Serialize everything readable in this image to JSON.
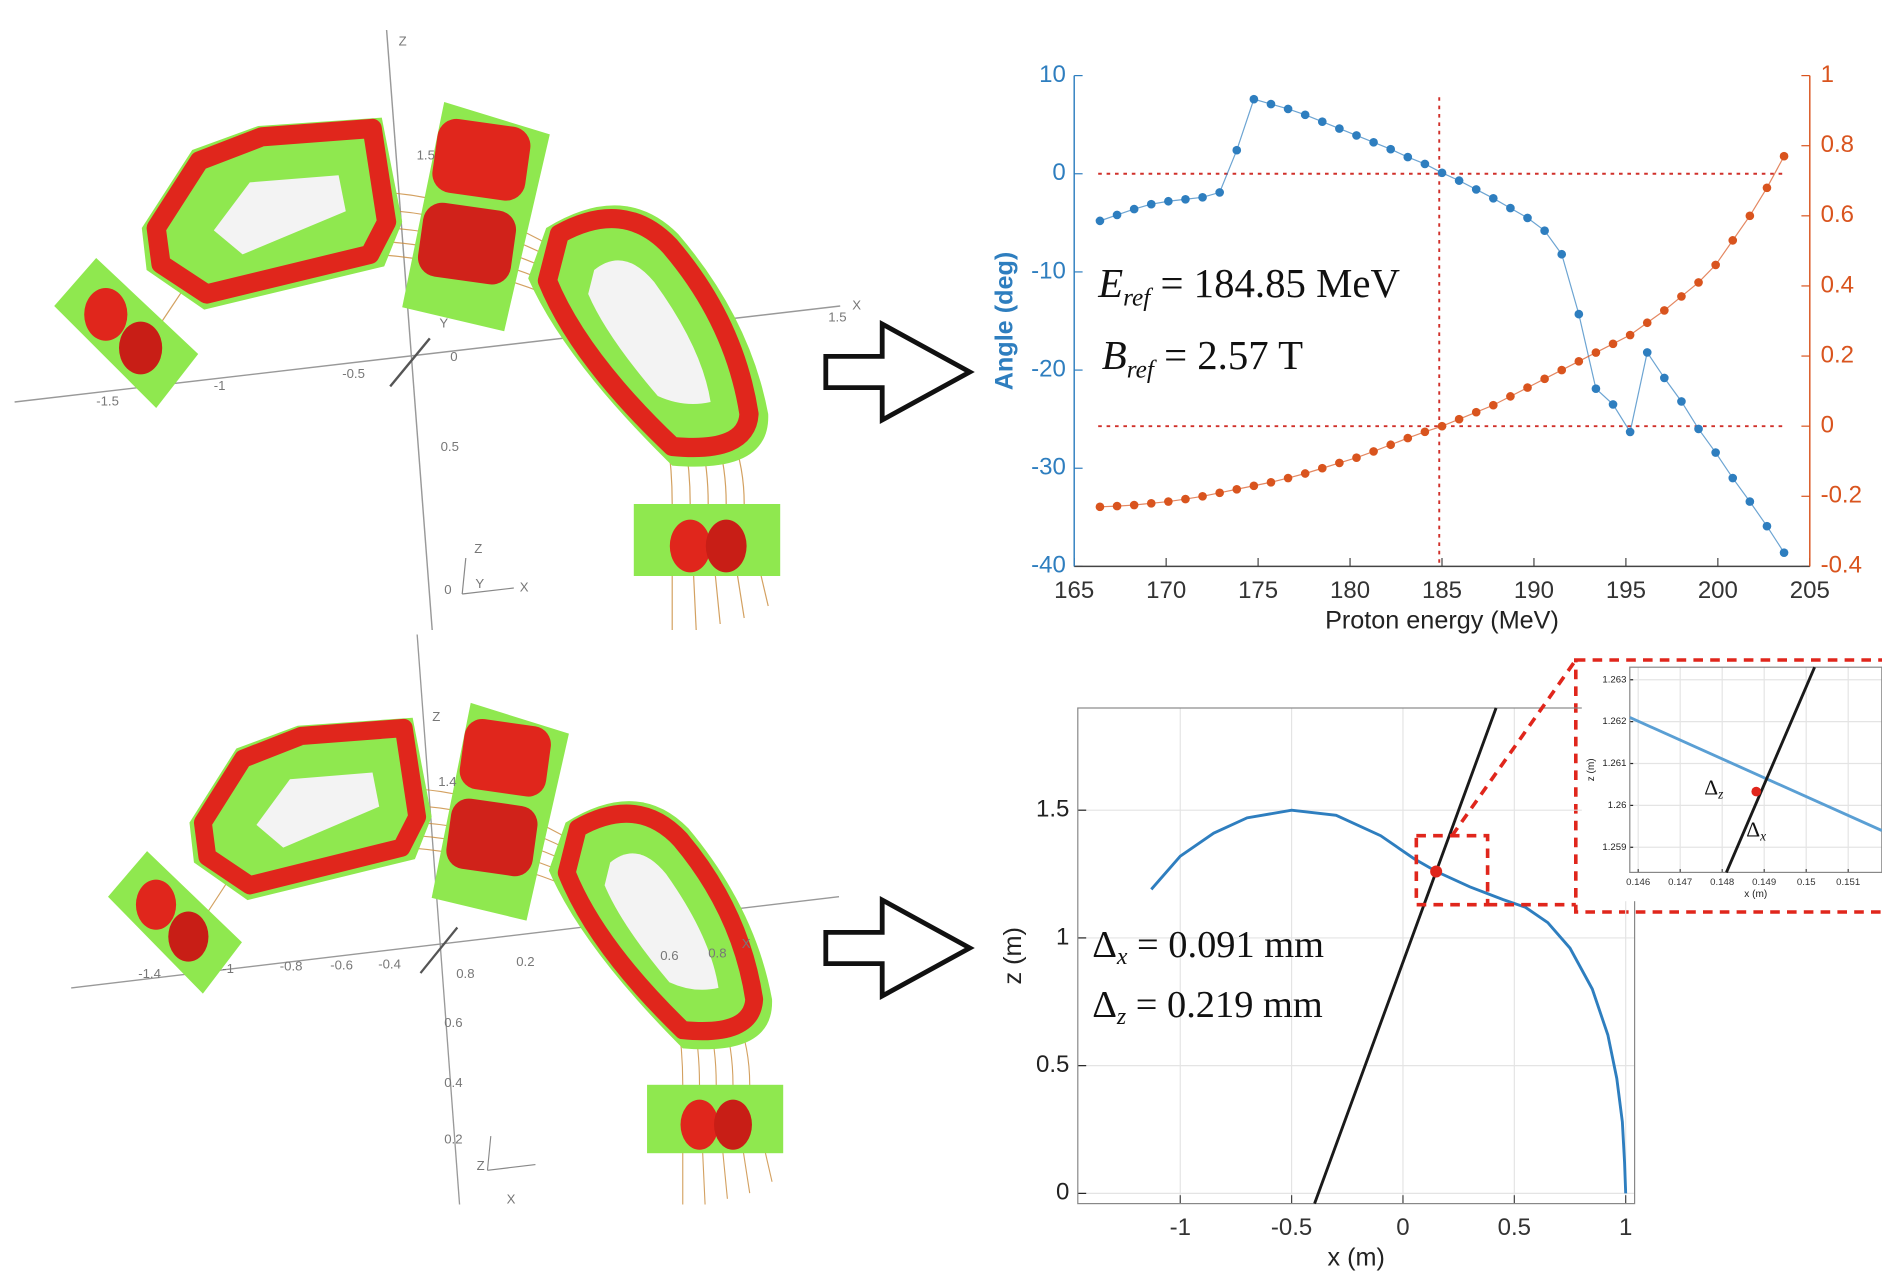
{
  "renders": {
    "top": {
      "labels": [
        "Z",
        "1.5",
        "X",
        "1.5",
        "-1.5",
        "-1",
        "-0.5",
        "0",
        "Y",
        "0.5",
        "Z",
        "Y",
        "X",
        "0"
      ]
    },
    "bottom": {
      "labels": [
        "Z",
        "1.4",
        "X",
        "-1.4",
        "-1",
        "-0.8",
        "-0.6",
        "-0.4",
        "0.8",
        "0.2",
        "0.6",
        "0.8",
        "0.6",
        "0.4",
        "0.2",
        "Z",
        "X"
      ]
    }
  },
  "chart_data": [
    {
      "type": "line",
      "markers": true,
      "colored_axes": true,
      "xlabel": "Proton energy (MeV)",
      "ylabel": "Angle (deg)",
      "x": [
        166.4,
        167.33,
        168.26,
        169.19,
        170.12,
        171.05,
        171.98,
        172.91,
        173.84,
        174.77,
        175.7,
        176.63,
        177.56,
        178.49,
        179.42,
        180.35,
        181.28,
        182.21,
        183.14,
        184.07,
        185,
        185.93,
        186.86,
        187.79,
        188.72,
        189.65,
        190.58,
        191.51,
        192.44,
        193.37,
        194.3,
        195.23,
        196.16,
        197.09,
        198.02,
        198.95,
        199.88,
        200.81,
        201.74,
        202.67,
        203.6
      ],
      "series": [
        {
          "color": "#2e7ebf",
          "values": [
            -4.8,
            -4.2,
            -3.6,
            -3.1,
            -2.8,
            -2.6,
            -2.4,
            -1.9,
            2.4,
            7.6,
            7.1,
            6.6,
            6.0,
            5.3,
            4.6,
            3.9,
            3.2,
            2.5,
            1.7,
            1.0,
            0.1,
            -0.7,
            -1.6,
            -2.5,
            -3.5,
            -4.5,
            -5.8,
            -8.2,
            -14.3,
            -21.9,
            -23.5,
            -26.3,
            -18.2,
            -20.8,
            -23.2,
            -26.0,
            -28.4,
            -31.0,
            -33.4,
            -35.9,
            -38.6
          ]
        },
        {
          "color": "#d9541e",
          "axis": "y2",
          "values": [
            -0.23,
            -0.228,
            -0.225,
            -0.22,
            -0.215,
            -0.208,
            -0.2,
            -0.19,
            -0.18,
            -0.17,
            -0.16,
            -0.148,
            -0.135,
            -0.12,
            -0.105,
            -0.09,
            -0.072,
            -0.053,
            -0.034,
            -0.016,
            0.0,
            0.02,
            0.04,
            0.06,
            0.085,
            0.11,
            0.135,
            0.16,
            0.185,
            0.21,
            0.235,
            0.26,
            0.295,
            0.33,
            0.37,
            0.41,
            0.46,
            0.53,
            0.6,
            0.68,
            0.77
          ]
        }
      ],
      "xlim": [
        165,
        205
      ],
      "xticks": [
        165,
        170,
        175,
        180,
        185,
        190,
        195,
        200,
        205
      ],
      "ylim": [
        -40,
        10
      ],
      "yticks": [
        -40,
        -30,
        -20,
        -10,
        0,
        10
      ],
      "y2lim": [
        -0.4,
        1
      ],
      "y2ticks": [
        -0.4,
        -0.2,
        0,
        0.2,
        0.4,
        0.6,
        0.8,
        1
      ],
      "reference": {
        "x": 184.85,
        "y": 0,
        "y2": 0,
        "color": "#d0302a"
      },
      "annotations": [
        {
          "symbol": "E",
          "sub": "ref",
          "text": "= 184.85 MeV",
          "symbol_italic": true
        },
        {
          "symbol": "B",
          "sub": "ref",
          "text": "= 2.57 T",
          "symbol_italic": true
        }
      ]
    },
    {
      "type": "line",
      "grid": true,
      "xlabel": "x (m)",
      "ylabel": "z (m)",
      "series": [
        {
          "color": "#2e7ebf",
          "x": [
            -1.13,
            -1.0,
            -0.85,
            -0.7,
            -0.5,
            -0.3,
            -0.1,
            0.05,
            0.15,
            0.3,
            0.45,
            0.55,
            0.65,
            0.75,
            0.85,
            0.92,
            0.96,
            0.985,
            0.995,
            1.0
          ],
          "values": [
            1.19,
            1.32,
            1.41,
            1.47,
            1.5,
            1.48,
            1.4,
            1.31,
            1.26,
            1.2,
            1.15,
            1.12,
            1.06,
            0.96,
            0.8,
            0.62,
            0.45,
            0.28,
            0.12,
            0.0
          ]
        },
        {
          "color": "#1a1a1a",
          "x": [
            -0.397,
            0.418
          ],
          "values": [
            -0.04,
            1.9
          ]
        }
      ],
      "marker": {
        "x": 0.149,
        "y": 1.26,
        "color": "#e0261c"
      },
      "zoom": {
        "xlim": [
          0.06,
          0.38
        ],
        "ylim": [
          1.13,
          1.4
        ],
        "color": "#e0261c"
      },
      "xlim": [
        -1.46,
        1.04
      ],
      "xticks": [
        -1,
        -0.5,
        0,
        0.5,
        1
      ],
      "ylim": [
        -0.04,
        1.9
      ],
      "yticks": [
        0,
        0.5,
        1,
        1.5
      ],
      "annotations": [
        {
          "symbol": "Δ",
          "sub": "x",
          "text": "= 0.091 mm",
          "symbol_italic": false
        },
        {
          "symbol": "Δ",
          "sub": "z",
          "text": "= 0.219 mm",
          "symbol_italic": false
        }
      ]
    },
    {
      "type": "line",
      "grid": true,
      "xlabel": "x (m)",
      "ylabel": "z (m)",
      "series": [
        {
          "color": "#5a9fd4",
          "x": [
            0.1458,
            0.1518
          ],
          "values": [
            1.2621,
            1.2594
          ]
        },
        {
          "color": "#1a1a1a",
          "x": [
            0.1481,
            0.1502
          ],
          "values": [
            1.2584,
            1.2633
          ]
        }
      ],
      "marker": {
        "x": 0.14881,
        "y": 1.26033,
        "color": "#e0261c"
      },
      "xlim": [
        0.1458,
        0.1518
      ],
      "xticks": [
        0.146,
        0.147,
        0.148,
        0.149,
        0.15,
        0.151
      ],
      "ylim": [
        1.2584,
        1.2633
      ],
      "yticks": [
        1.259,
        1.26,
        1.261,
        1.262,
        1.263
      ],
      "annotations": [
        {
          "symbol": "Δ",
          "sub": "z",
          "symbol_italic": false
        },
        {
          "symbol": "Δ",
          "sub": "x",
          "symbol_italic": false
        }
      ]
    }
  ]
}
